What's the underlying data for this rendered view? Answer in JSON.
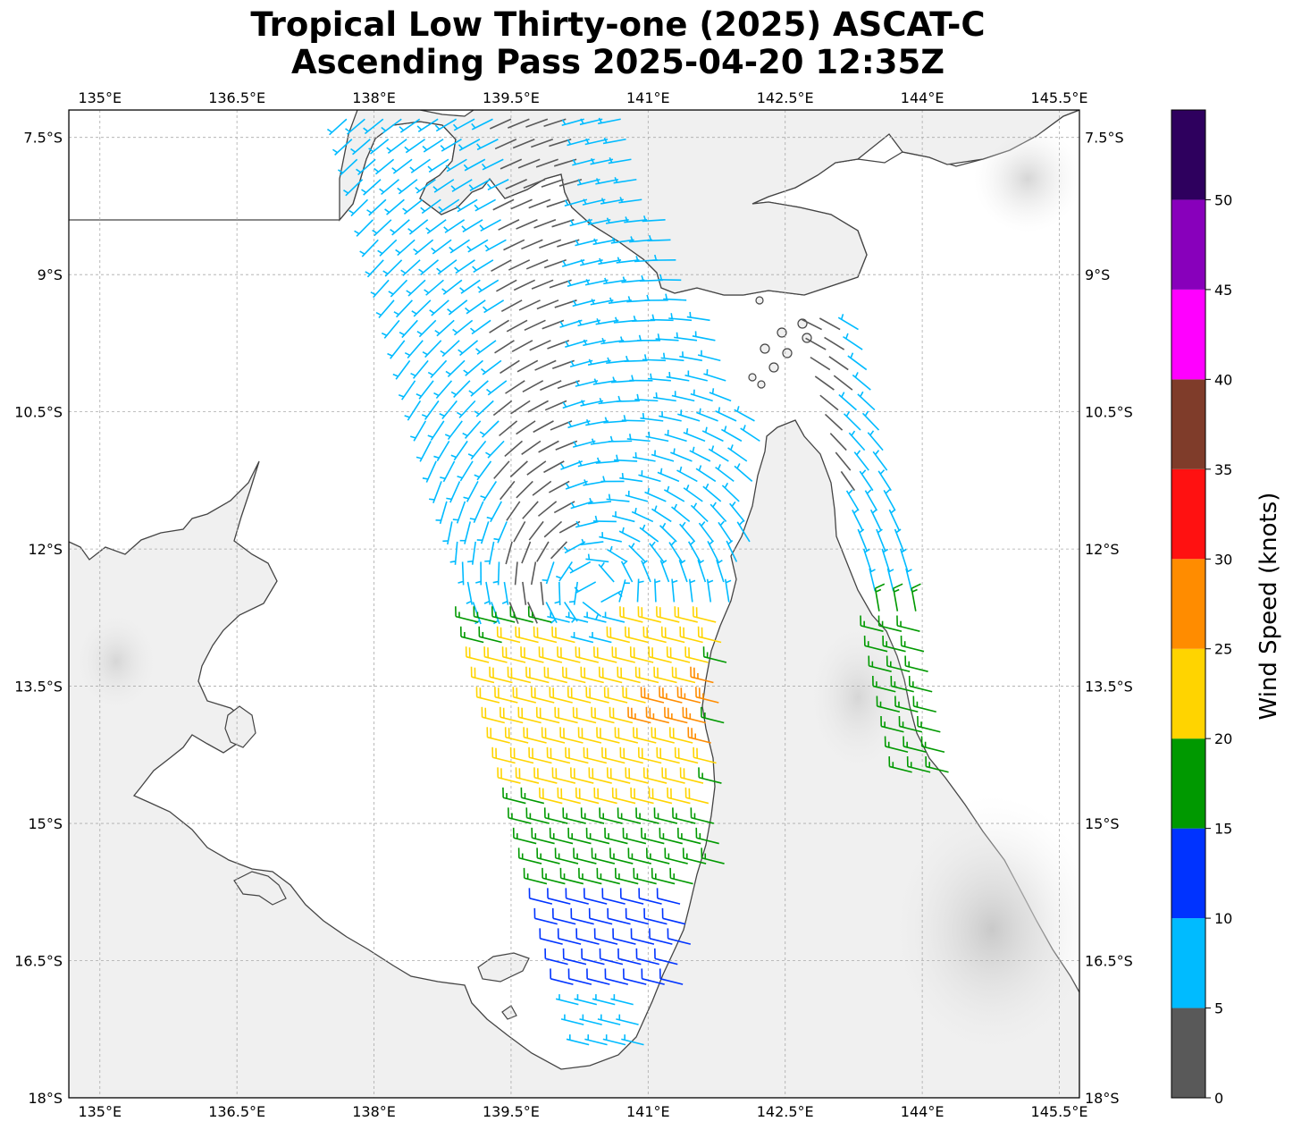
{
  "title_line1": "Tropical Low Thirty-one (2025) ASCAT-C",
  "title_line2": "Ascending Pass 2025-04-20 12:35Z",
  "map": {
    "lon_range": [
      134.66,
      145.72
    ],
    "lat_range": [
      -18.0,
      -7.2
    ],
    "lon_ticks": [
      "135°E",
      "136.5°E",
      "138°E",
      "139.5°E",
      "141°E",
      "142.5°E",
      "144°E",
      "145.5°E"
    ],
    "lon_values": [
      135,
      136.5,
      138,
      139.5,
      141,
      142.5,
      144,
      145.5
    ],
    "lat_ticks": [
      "7.5°S",
      "9°S",
      "10.5°S",
      "12°S",
      "13.5°S",
      "15°S",
      "16.5°S",
      "18°S"
    ],
    "lat_values": [
      -7.5,
      -9,
      -10.5,
      -12,
      -13.5,
      -15,
      -16.5,
      -18
    ],
    "gridlines": true,
    "coastline_color": "#444444",
    "low_center": [
      140.45,
      -12.45
    ]
  },
  "colorbar": {
    "label": "Wind Speed (knots)",
    "ticks": [
      "0",
      "5",
      "10",
      "15",
      "20",
      "25",
      "30",
      "35",
      "40",
      "45",
      "50"
    ],
    "bins": [
      {
        "min": 0,
        "max": 5,
        "color": "#595959"
      },
      {
        "min": 5,
        "max": 10,
        "color": "#00bbff"
      },
      {
        "min": 10,
        "max": 15,
        "color": "#0033ff"
      },
      {
        "min": 15,
        "max": 20,
        "color": "#009900"
      },
      {
        "min": 20,
        "max": 25,
        "color": "#ffd400"
      },
      {
        "min": 25,
        "max": 30,
        "color": "#ff8c00"
      },
      {
        "min": 30,
        "max": 35,
        "color": "#ff1111"
      },
      {
        "min": 35,
        "max": 40,
        "color": "#7f3c2a"
      },
      {
        "min": 40,
        "max": 45,
        "color": "#ff00ff"
      },
      {
        "min": 45,
        "max": 50,
        "color": "#8800bb"
      },
      {
        "min": 50,
        "max": 55,
        "color": "#2e005e"
      }
    ]
  },
  "swaths": [
    {
      "name": "main-swath",
      "lon_min": 137.7,
      "lon_max": 142.8,
      "lat_min": -17.6,
      "lat_max": -7.3,
      "skew": -0.38
    },
    {
      "name": "east-swath",
      "lon_min": 142.8,
      "lon_max": 144.4,
      "lat_min": -14.5,
      "lat_max": -9.6,
      "skew": -0.2
    }
  ]
}
